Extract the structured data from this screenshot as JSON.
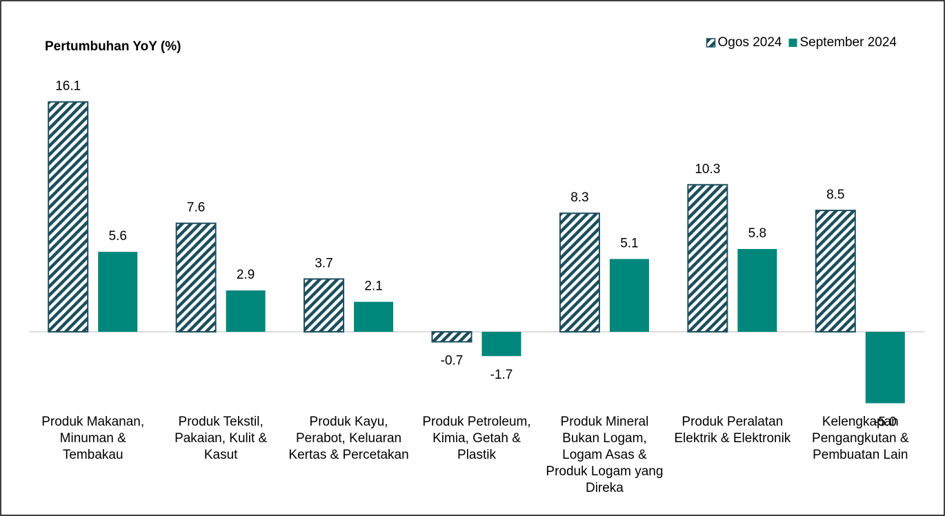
{
  "chart_data": {
    "type": "bar",
    "title": "Pertumbuhan YoY (%)",
    "categories": [
      "Produk Makanan, Minuman & Tembakau",
      "Produk Tekstil, Pakaian, Kulit & Kasut",
      "Produk Kayu, Perabot, Keluaran Kertas & Percetakan",
      "Produk Petroleum, Kimia, Getah & Plastik",
      "Produk Mineral Bukan Logam, Logam Asas & Produk Logam yang Direka",
      "Produk Peralatan Elektrik & Elektronik",
      "Kelengkapan Pengangkutan & Pembuatan Lain"
    ],
    "series": [
      {
        "name": "Ogos 2024",
        "color": "#1d4e5e",
        "pattern": "hatch",
        "values": [
          16.1,
          7.6,
          3.7,
          -0.7,
          8.3,
          10.3,
          8.5
        ],
        "value_labels": [
          "16.1",
          "7.6",
          "3.7",
          "-0.7",
          "8.3",
          "10.3",
          "8.5"
        ]
      },
      {
        "name": "September 2024",
        "color": "#00877b",
        "pattern": "solid",
        "values": [
          5.6,
          2.9,
          2.1,
          -1.7,
          5.1,
          5.8,
          -5.0
        ],
        "value_labels": [
          "5.6",
          "2.9",
          "2.1",
          "-1.7",
          "5.1",
          "5.8",
          "-5.0"
        ]
      }
    ],
    "ylim": [
      -6,
      18
    ],
    "legend": "top-right"
  }
}
